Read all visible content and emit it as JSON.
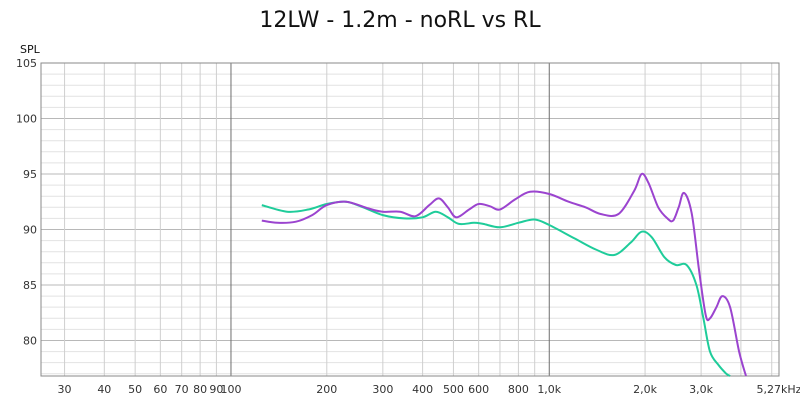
{
  "chart_data": {
    "type": "line",
    "title": "12LW - 1.2m - noRL vs RL",
    "ylabel": "SPL",
    "xlabel": "",
    "x_scale": "log",
    "xlim": [
      25.3,
      5270
    ],
    "ylim": [
      76.8,
      105
    ],
    "grid": true,
    "x_ticks": [
      30,
      40,
      50,
      60,
      70,
      80,
      90,
      100,
      200,
      300,
      400,
      500,
      600,
      800,
      1000,
      2000,
      3000,
      5270
    ],
    "x_tick_labels": [
      "30",
      "40",
      "50",
      "60",
      "70",
      "80",
      "90",
      "100",
      "200",
      "300",
      "400",
      "500",
      "600",
      "800",
      "1,0k",
      "2,0k",
      "3,0k",
      "5,27kHz"
    ],
    "y_ticks": [
      80,
      85,
      90,
      95,
      100,
      105
    ],
    "y_tick_labels": [
      "80",
      "85",
      "90",
      "95",
      "100",
      "105"
    ],
    "series": [
      {
        "color": "#1fcc9a",
        "points": [
          [
            125,
            92.2
          ],
          [
            150,
            91.6
          ],
          [
            175,
            91.8
          ],
          [
            200,
            92.3
          ],
          [
            230,
            92.5
          ],
          [
            260,
            92.0
          ],
          [
            300,
            91.3
          ],
          [
            350,
            91.0
          ],
          [
            400,
            91.1
          ],
          [
            440,
            91.6
          ],
          [
            480,
            91.1
          ],
          [
            520,
            90.5
          ],
          [
            580,
            90.6
          ],
          [
            620,
            90.5
          ],
          [
            700,
            90.2
          ],
          [
            800,
            90.6
          ],
          [
            900,
            90.9
          ],
          [
            1000,
            90.4
          ],
          [
            1200,
            89.2
          ],
          [
            1400,
            88.2
          ],
          [
            1600,
            87.7
          ],
          [
            1800,
            88.8
          ],
          [
            1950,
            89.8
          ],
          [
            2100,
            89.3
          ],
          [
            2300,
            87.5
          ],
          [
            2500,
            86.8
          ],
          [
            2700,
            86.8
          ],
          [
            2900,
            85.0
          ],
          [
            3050,
            82.0
          ],
          [
            3200,
            79.0
          ],
          [
            3400,
            77.8
          ],
          [
            3600,
            77.0
          ],
          [
            3700,
            76.8
          ]
        ]
      },
      {
        "color": "#9b44cf",
        "points": [
          [
            125,
            90.8
          ],
          [
            140,
            90.6
          ],
          [
            160,
            90.7
          ],
          [
            180,
            91.3
          ],
          [
            200,
            92.2
          ],
          [
            230,
            92.5
          ],
          [
            270,
            91.9
          ],
          [
            300,
            91.6
          ],
          [
            340,
            91.6
          ],
          [
            380,
            91.2
          ],
          [
            420,
            92.2
          ],
          [
            450,
            92.8
          ],
          [
            480,
            92.0
          ],
          [
            510,
            91.1
          ],
          [
            560,
            91.8
          ],
          [
            600,
            92.3
          ],
          [
            650,
            92.1
          ],
          [
            700,
            91.8
          ],
          [
            780,
            92.7
          ],
          [
            870,
            93.4
          ],
          [
            1000,
            93.2
          ],
          [
            1150,
            92.5
          ],
          [
            1300,
            92.0
          ],
          [
            1450,
            91.4
          ],
          [
            1650,
            91.4
          ],
          [
            1850,
            93.5
          ],
          [
            1950,
            95.0
          ],
          [
            2050,
            94.2
          ],
          [
            2200,
            92.0
          ],
          [
            2350,
            91.0
          ],
          [
            2450,
            90.8
          ],
          [
            2550,
            92.0
          ],
          [
            2650,
            93.3
          ],
          [
            2800,
            91.5
          ],
          [
            2950,
            86.5
          ],
          [
            3100,
            82.3
          ],
          [
            3200,
            82.0
          ],
          [
            3350,
            83.0
          ],
          [
            3500,
            84.0
          ],
          [
            3700,
            83.0
          ],
          [
            3950,
            79.0
          ],
          [
            4150,
            76.8
          ]
        ]
      }
    ]
  }
}
